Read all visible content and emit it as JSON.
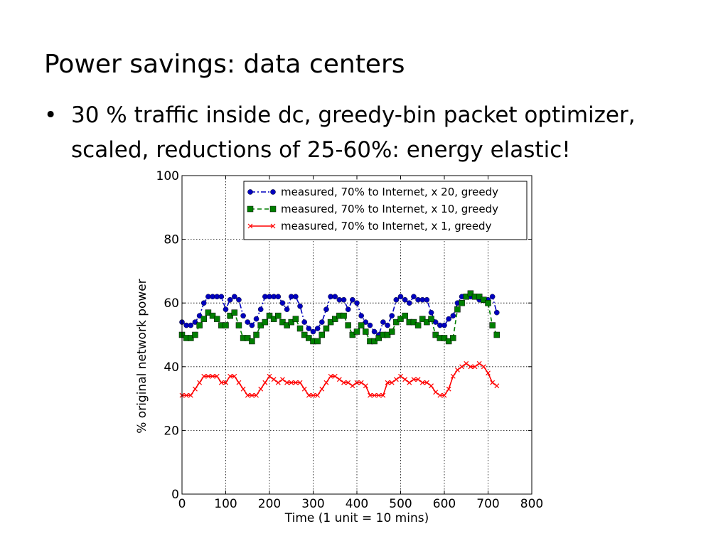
{
  "slide": {
    "title": "Power savings: data centers",
    "bullet_marker": "•",
    "bullet": "30 % traffic inside dc, greedy-bin packet optimizer, scaled, reductions of 25-60%: energy elastic!"
  },
  "chart_data": {
    "type": "line",
    "title": "",
    "xlabel": "Time (1 unit = 10 mins)",
    "ylabel": "% original network power",
    "xlim": [
      0,
      800
    ],
    "ylim": [
      0,
      100
    ],
    "xticks": [
      0,
      100,
      200,
      300,
      400,
      500,
      600,
      700,
      800
    ],
    "yticks": [
      0,
      20,
      40,
      60,
      80,
      100
    ],
    "grid": true,
    "legend_position": "top-right",
    "series": [
      {
        "name": "measured, 70% to Internet, x 20, greedy",
        "color": "#0000bf",
        "marker": "circle",
        "line_style": "dash-dot",
        "x": [
          0,
          10,
          20,
          30,
          40,
          50,
          60,
          70,
          80,
          90,
          100,
          110,
          120,
          130,
          140,
          150,
          160,
          170,
          180,
          190,
          200,
          210,
          220,
          230,
          240,
          250,
          260,
          270,
          280,
          290,
          300,
          310,
          320,
          330,
          340,
          350,
          360,
          370,
          380,
          390,
          400,
          410,
          420,
          430,
          440,
          450,
          460,
          470,
          480,
          490,
          500,
          510,
          520,
          530,
          540,
          550,
          560,
          570,
          580,
          590,
          600,
          610,
          620,
          630,
          640,
          650,
          660,
          670,
          680,
          690,
          700,
          710,
          720
        ],
        "y": [
          54,
          53,
          53,
          54,
          56,
          60,
          62,
          62,
          62,
          62,
          58,
          61,
          62,
          61,
          56,
          54,
          53,
          55,
          58,
          62,
          62,
          62,
          62,
          60,
          58,
          62,
          62,
          59,
          54,
          52,
          51,
          52,
          54,
          58,
          62,
          62,
          61,
          61,
          58,
          61,
          60,
          56,
          54,
          53,
          51,
          50,
          54,
          53,
          56,
          61,
          62,
          61,
          60,
          62,
          61,
          61,
          61,
          57,
          54,
          53,
          53,
          55,
          56,
          60,
          62,
          62,
          62,
          62,
          61,
          61,
          61,
          62,
          57
        ]
      },
      {
        "name": "measured, 70% to Internet, x 10, greedy",
        "color": "#007f00",
        "marker": "square",
        "line_style": "dashed",
        "x": [
          0,
          10,
          20,
          30,
          40,
          50,
          60,
          70,
          80,
          90,
          100,
          110,
          120,
          130,
          140,
          150,
          160,
          170,
          180,
          190,
          200,
          210,
          220,
          230,
          240,
          250,
          260,
          270,
          280,
          290,
          300,
          310,
          320,
          330,
          340,
          350,
          360,
          370,
          380,
          390,
          400,
          410,
          420,
          430,
          440,
          450,
          460,
          470,
          480,
          490,
          500,
          510,
          520,
          530,
          540,
          550,
          560,
          570,
          580,
          590,
          600,
          610,
          620,
          630,
          640,
          650,
          660,
          670,
          680,
          690,
          700,
          710,
          720
        ],
        "y": [
          50,
          49,
          49,
          50,
          53,
          55,
          57,
          56,
          55,
          53,
          53,
          56,
          57,
          53,
          49,
          49,
          48,
          50,
          53,
          54,
          56,
          55,
          56,
          54,
          53,
          54,
          55,
          52,
          50,
          49,
          48,
          48,
          50,
          52,
          54,
          55,
          56,
          56,
          53,
          50,
          51,
          53,
          51,
          48,
          48,
          49,
          50,
          50,
          51,
          54,
          55,
          56,
          54,
          54,
          53,
          55,
          54,
          55,
          50,
          49,
          49,
          48,
          49,
          58,
          60,
          62,
          63,
          62,
          62,
          61,
          60,
          53,
          50
        ]
      },
      {
        "name": "measured, 70% to Internet, x 1, greedy",
        "color": "#ff0000",
        "marker": "x",
        "line_style": "solid",
        "x": [
          0,
          10,
          20,
          30,
          40,
          50,
          60,
          70,
          80,
          90,
          100,
          110,
          120,
          130,
          140,
          150,
          160,
          170,
          180,
          190,
          200,
          210,
          220,
          230,
          240,
          250,
          260,
          270,
          280,
          290,
          300,
          310,
          320,
          330,
          340,
          350,
          360,
          370,
          380,
          390,
          400,
          410,
          420,
          430,
          440,
          450,
          460,
          470,
          480,
          490,
          500,
          510,
          520,
          530,
          540,
          550,
          560,
          570,
          580,
          590,
          600,
          610,
          620,
          630,
          640,
          650,
          660,
          670,
          680,
          690,
          700,
          710,
          720
        ],
        "y": [
          31,
          31,
          31,
          33,
          35,
          37,
          37,
          37,
          37,
          35,
          35,
          37,
          37,
          35,
          33,
          31,
          31,
          31,
          33,
          35,
          37,
          36,
          35,
          36,
          35,
          35,
          35,
          35,
          33,
          31,
          31,
          31,
          33,
          35,
          37,
          37,
          36,
          35,
          35,
          34,
          35,
          35,
          34,
          31,
          31,
          31,
          31,
          35,
          35,
          36,
          37,
          36,
          35,
          36,
          36,
          35,
          35,
          34,
          32,
          31,
          31,
          33,
          37,
          39,
          40,
          41,
          40,
          40,
          41,
          40,
          38,
          35,
          34
        ]
      }
    ]
  }
}
